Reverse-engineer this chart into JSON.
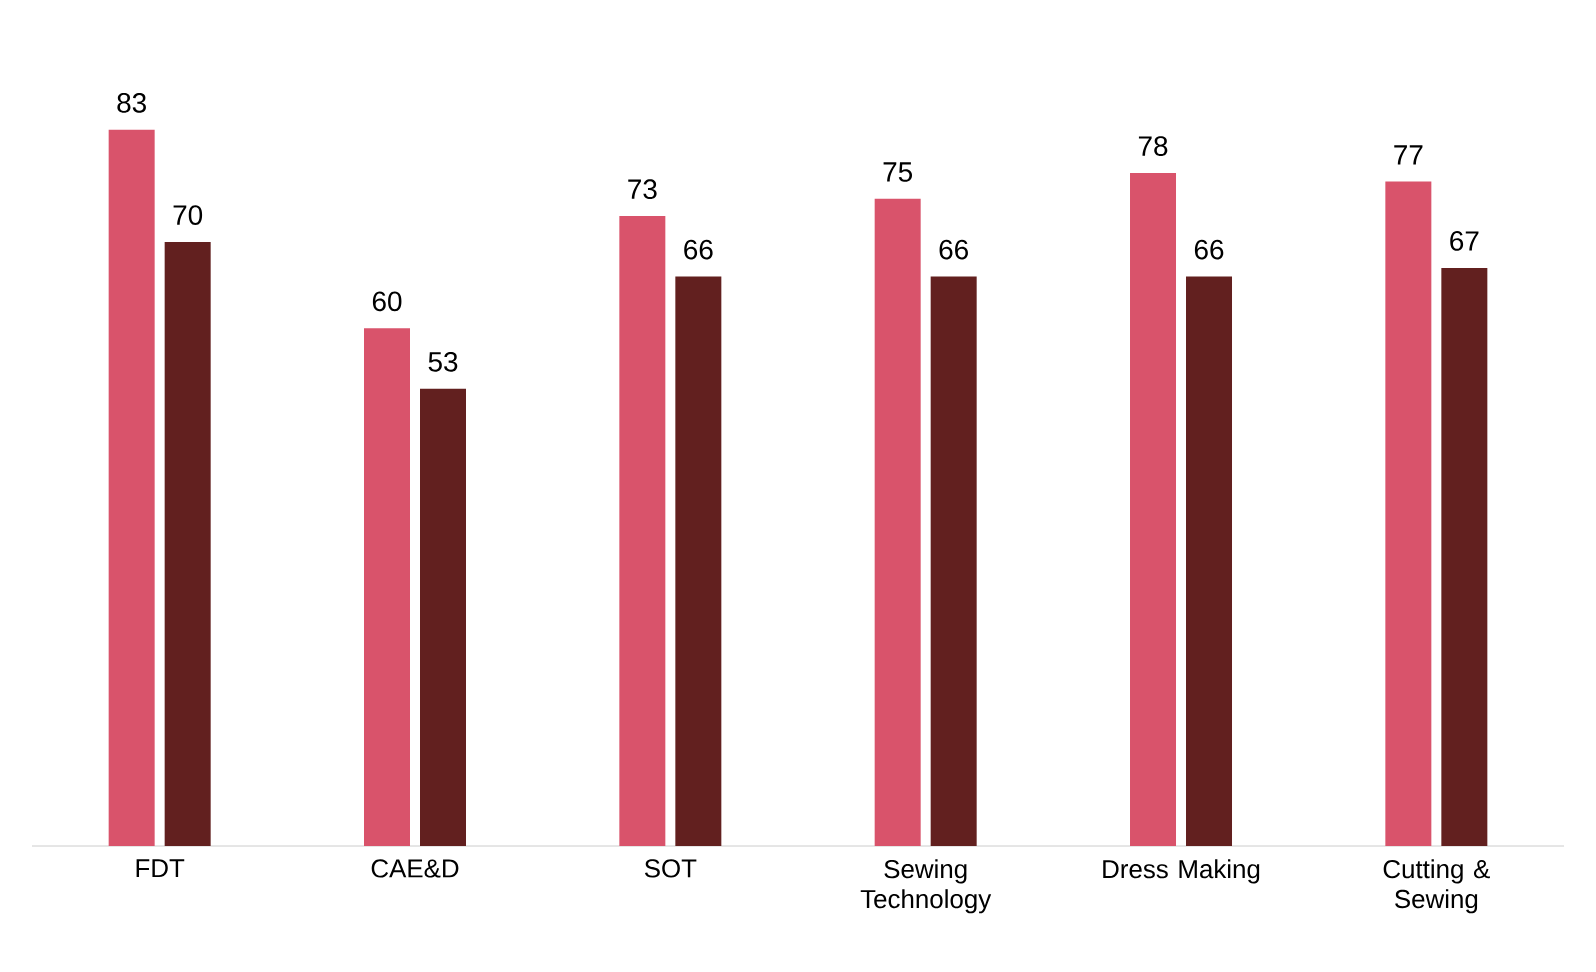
{
  "chart_data": {
    "type": "bar",
    "categories": [
      "FDT",
      "CAE&D",
      "SOT",
      "Sewing Technology",
      "Dress Making",
      "Cutting & Sewing"
    ],
    "series": [
      {
        "color": "#d9536b",
        "values": [
          83,
          60,
          73,
          75,
          78,
          77
        ]
      },
      {
        "color": "#62201f",
        "values": [
          70,
          53,
          66,
          66,
          66,
          67
        ]
      }
    ],
    "data_labels": true
  }
}
